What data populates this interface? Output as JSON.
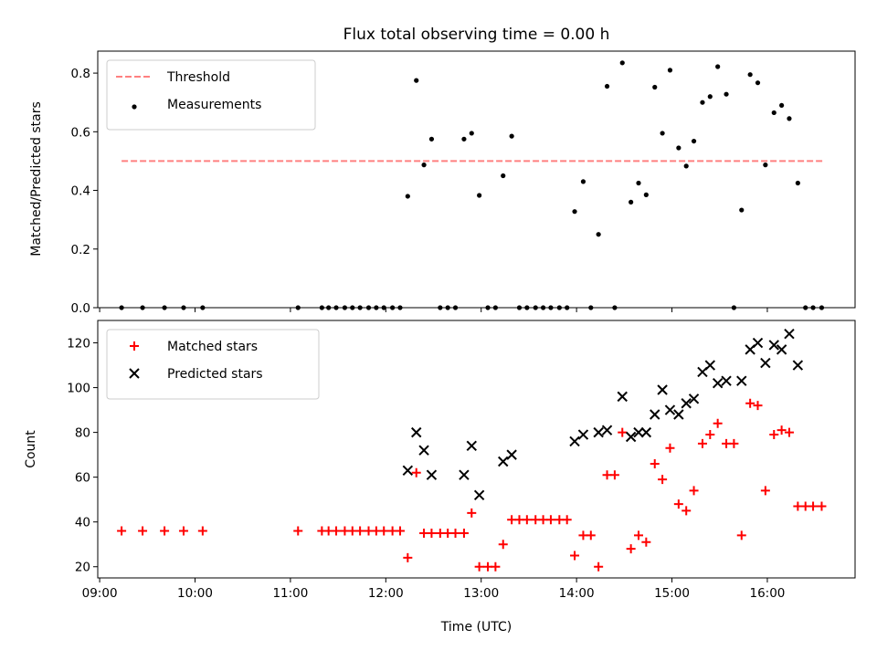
{
  "chart_data": {
    "title": "Flux total observing time = 0.00 h",
    "xlabel": "Time (UTC)",
    "x_unit": "hours UTC",
    "xlim": [
      8.98,
      16.92
    ],
    "xticks": [
      {
        "value": 9,
        "label": "09:00"
      },
      {
        "value": 10,
        "label": "10:00"
      },
      {
        "value": 11,
        "label": "11:00"
      },
      {
        "value": 12,
        "label": "12:00"
      },
      {
        "value": 13,
        "label": "13:00"
      },
      {
        "value": 14,
        "label": "14:00"
      },
      {
        "value": 15,
        "label": "15:00"
      },
      {
        "value": 16,
        "label": "16:00"
      }
    ],
    "panels": [
      {
        "type": "scatter",
        "ylabel": "Matched/Predicted stars",
        "ylim": [
          0,
          0.875
        ],
        "yticks": [
          {
            "value": 0,
            "label": "0.0"
          },
          {
            "value": 0.2,
            "label": "0.2"
          },
          {
            "value": 0.4,
            "label": "0.4"
          },
          {
            "value": 0.6,
            "label": "0.6"
          },
          {
            "value": 0.8,
            "label": "0.8"
          }
        ],
        "legend": "upper-left",
        "threshold": {
          "name": "Threshold",
          "color": "#ff8080",
          "value": 0.5,
          "x_range": [
            9.23,
            16.58
          ]
        },
        "series": [
          {
            "name": "Measurements",
            "color": "#000000",
            "marker": "dot",
            "points": [
              [
                9.23,
                0
              ],
              [
                9.45,
                0
              ],
              [
                9.68,
                0
              ],
              [
                9.88,
                0
              ],
              [
                10.08,
                0
              ],
              [
                11.08,
                0
              ],
              [
                11.33,
                0
              ],
              [
                11.4,
                0
              ],
              [
                11.48,
                0
              ],
              [
                11.57,
                0
              ],
              [
                11.65,
                0
              ],
              [
                11.73,
                0
              ],
              [
                11.82,
                0
              ],
              [
                11.9,
                0
              ],
              [
                11.98,
                0
              ],
              [
                12.07,
                0
              ],
              [
                12.15,
                0
              ],
              [
                12.23,
                0.38
              ],
              [
                12.32,
                0.775
              ],
              [
                12.4,
                0.487
              ],
              [
                12.48,
                0.575
              ],
              [
                12.57,
                0
              ],
              [
                12.65,
                0
              ],
              [
                12.73,
                0
              ],
              [
                12.82,
                0.575
              ],
              [
                12.9,
                0.595
              ],
              [
                12.98,
                0.383
              ],
              [
                13.07,
                0
              ],
              [
                13.15,
                0
              ],
              [
                13.23,
                0.45
              ],
              [
                13.32,
                0.585
              ],
              [
                13.4,
                0
              ],
              [
                13.48,
                0
              ],
              [
                13.57,
                0
              ],
              [
                13.65,
                0
              ],
              [
                13.73,
                0
              ],
              [
                13.82,
                0
              ],
              [
                13.9,
                0
              ],
              [
                13.98,
                0.328
              ],
              [
                14.07,
                0.43
              ],
              [
                14.15,
                0
              ],
              [
                14.23,
                0.25
              ],
              [
                14.32,
                0.755
              ],
              [
                14.4,
                0
              ],
              [
                14.48,
                0.835
              ],
              [
                14.57,
                0.36
              ],
              [
                14.65,
                0.425
              ],
              [
                14.73,
                0.385
              ],
              [
                14.82,
                0.752
              ],
              [
                14.9,
                0.595
              ],
              [
                14.98,
                0.81
              ],
              [
                15.07,
                0.545
              ],
              [
                15.15,
                0.483
              ],
              [
                15.23,
                0.568
              ],
              [
                15.32,
                0.7
              ],
              [
                15.4,
                0.72
              ],
              [
                15.48,
                0.822
              ],
              [
                15.57,
                0.728
              ],
              [
                15.65,
                0
              ],
              [
                15.73,
                0.333
              ],
              [
                15.82,
                0.795
              ],
              [
                15.9,
                0.767
              ],
              [
                15.98,
                0.487
              ],
              [
                16.07,
                0.665
              ],
              [
                16.15,
                0.69
              ],
              [
                16.23,
                0.645
              ],
              [
                16.32,
                0.425
              ],
              [
                16.4,
                0
              ],
              [
                16.48,
                0
              ],
              [
                16.57,
                0
              ]
            ]
          }
        ]
      },
      {
        "type": "scatter",
        "ylabel": "Count",
        "ylim": [
          15,
          130
        ],
        "yticks": [
          {
            "value": 20,
            "label": "20"
          },
          {
            "value": 40,
            "label": "40"
          },
          {
            "value": 60,
            "label": "60"
          },
          {
            "value": 80,
            "label": "80"
          },
          {
            "value": 100,
            "label": "100"
          },
          {
            "value": 120,
            "label": "120"
          }
        ],
        "legend": "upper-left",
        "series": [
          {
            "name": "Matched stars",
            "color": "#ff0000",
            "marker": "plus",
            "points": [
              [
                9.23,
                36
              ],
              [
                9.45,
                36
              ],
              [
                9.68,
                36
              ],
              [
                9.88,
                36
              ],
              [
                10.08,
                36
              ],
              [
                11.08,
                36
              ],
              [
                11.33,
                36
              ],
              [
                11.4,
                36
              ],
              [
                11.48,
                36
              ],
              [
                11.57,
                36
              ],
              [
                11.65,
                36
              ],
              [
                11.73,
                36
              ],
              [
                11.82,
                36
              ],
              [
                11.9,
                36
              ],
              [
                11.98,
                36
              ],
              [
                12.07,
                36
              ],
              [
                12.15,
                36
              ],
              [
                12.23,
                24
              ],
              [
                12.32,
                62
              ],
              [
                12.4,
                35
              ],
              [
                12.48,
                35
              ],
              [
                12.57,
                35
              ],
              [
                12.65,
                35
              ],
              [
                12.73,
                35
              ],
              [
                12.82,
                35
              ],
              [
                12.9,
                44
              ],
              [
                12.98,
                20
              ],
              [
                13.07,
                20
              ],
              [
                13.15,
                20
              ],
              [
                13.23,
                30
              ],
              [
                13.32,
                41
              ],
              [
                13.4,
                41
              ],
              [
                13.48,
                41
              ],
              [
                13.57,
                41
              ],
              [
                13.65,
                41
              ],
              [
                13.73,
                41
              ],
              [
                13.82,
                41
              ],
              [
                13.9,
                41
              ],
              [
                13.98,
                25
              ],
              [
                14.07,
                34
              ],
              [
                14.15,
                34
              ],
              [
                14.23,
                20
              ],
              [
                14.32,
                61
              ],
              [
                14.4,
                61
              ],
              [
                14.48,
                80
              ],
              [
                14.57,
                28
              ],
              [
                14.65,
                34
              ],
              [
                14.73,
                31
              ],
              [
                14.82,
                66
              ],
              [
                14.9,
                59
              ],
              [
                14.98,
                73
              ],
              [
                15.07,
                48
              ],
              [
                15.15,
                45
              ],
              [
                15.23,
                54
              ],
              [
                15.32,
                75
              ],
              [
                15.4,
                79
              ],
              [
                15.48,
                84
              ],
              [
                15.57,
                75
              ],
              [
                15.65,
                75
              ],
              [
                15.73,
                34
              ],
              [
                15.82,
                93
              ],
              [
                15.9,
                92
              ],
              [
                15.98,
                54
              ],
              [
                16.07,
                79
              ],
              [
                16.15,
                81
              ],
              [
                16.23,
                80
              ],
              [
                16.32,
                47
              ],
              [
                16.4,
                47
              ],
              [
                16.48,
                47
              ],
              [
                16.57,
                47
              ]
            ]
          },
          {
            "name": "Predicted stars",
            "color": "#000000",
            "marker": "x",
            "points": [
              [
                12.23,
                63
              ],
              [
                12.32,
                80
              ],
              [
                12.4,
                72
              ],
              [
                12.48,
                61
              ],
              [
                12.82,
                61
              ],
              [
                12.9,
                74
              ],
              [
                12.98,
                52
              ],
              [
                13.23,
                67
              ],
              [
                13.32,
                70
              ],
              [
                13.98,
                76
              ],
              [
                14.07,
                79
              ],
              [
                14.23,
                80
              ],
              [
                14.32,
                81
              ],
              [
                14.48,
                96
              ],
              [
                14.57,
                78
              ],
              [
                14.65,
                80
              ],
              [
                14.73,
                80
              ],
              [
                14.82,
                88
              ],
              [
                14.9,
                99
              ],
              [
                14.98,
                90
              ],
              [
                15.07,
                88
              ],
              [
                15.15,
                93
              ],
              [
                15.23,
                95
              ],
              [
                15.32,
                107
              ],
              [
                15.4,
                110
              ],
              [
                15.48,
                102
              ],
              [
                15.57,
                103
              ],
              [
                15.73,
                103
              ],
              [
                15.82,
                117
              ],
              [
                15.9,
                120
              ],
              [
                15.98,
                111
              ],
              [
                16.07,
                119
              ],
              [
                16.15,
                117
              ],
              [
                16.23,
                124
              ],
              [
                16.32,
                110
              ]
            ]
          }
        ]
      }
    ]
  }
}
